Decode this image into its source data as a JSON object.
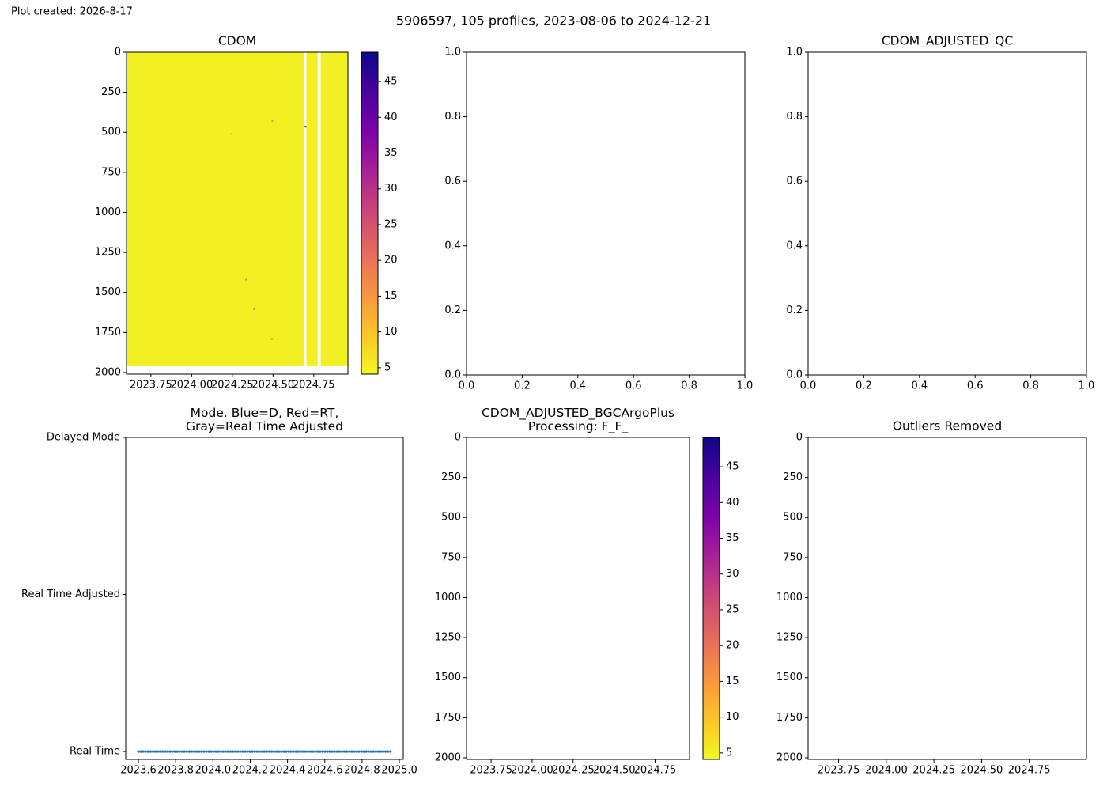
{
  "header": {
    "created": "Plot created: 2026-8-17",
    "title": "5906597, 105 profiles, 2023-08-06 to 2024-12-21"
  },
  "chart_data": [
    {
      "type": "heatmap",
      "title": "CDOM",
      "colormap": "plasma_r",
      "xlim": [
        2023.6,
        2024.96
      ],
      "ylim": [
        2010,
        0
      ],
      "xticks": [
        2023.75,
        {
          "value": 2024,
          "label": "2024.00"
        },
        2024.25,
        {
          "value": 2024.5,
          "label": "2024.50"
        },
        2024.75
      ],
      "yticks": [
        0,
        250,
        500,
        750,
        1000,
        1250,
        1500,
        1750,
        2000
      ],
      "colorbar": {
        "lim": [
          4.1,
          49.1
        ],
        "ticks": [
          5,
          10,
          15,
          20,
          25,
          30,
          35,
          40,
          45
        ]
      },
      "cells": [
        {
          "x": [
            2023.6,
            2024.69
          ],
          "y": [
            0,
            1960
          ],
          "value": 5
        },
        {
          "x": [
            2024.705,
            2024.774
          ],
          "y": [
            0,
            1960
          ],
          "value": 5
        },
        {
          "x": [
            2024.793,
            2024.96
          ],
          "y": [
            0,
            1960
          ],
          "value": 5
        },
        {
          "x": [
            2024.695,
            2024.705
          ],
          "y": [
            460,
            470
          ],
          "value": 48
        },
        {
          "x": [
            2024.485,
            2024.5
          ],
          "y": [
            1785,
            1795
          ],
          "value": 20
        },
        {
          "x": [
            2024.24,
            2024.25
          ],
          "y": [
            505,
            515
          ],
          "value": 14
        },
        {
          "x": [
            2024.49,
            2024.5
          ],
          "y": [
            425,
            435
          ],
          "value": 17
        },
        {
          "x": [
            2024.38,
            2024.39
          ],
          "y": [
            1600,
            1610
          ],
          "value": 20
        },
        {
          "x": [
            2024.33,
            2024.34
          ],
          "y": [
            1415,
            1425
          ],
          "value": 20
        }
      ]
    },
    {
      "type": "line",
      "xlim": [
        0,
        1
      ],
      "ylim": [
        0,
        1
      ],
      "xticks": [
        {
          "value": 0,
          "label": "0.0"
        },
        0.2,
        0.4,
        0.6,
        0.8,
        {
          "value": 1,
          "label": "1.0"
        }
      ],
      "yticks": [
        {
          "value": 0,
          "label": "0.0"
        },
        0.2,
        0.4,
        0.6,
        0.8,
        {
          "value": 1,
          "label": "1.0"
        }
      ],
      "series": []
    },
    {
      "type": "line",
      "title": "CDOM_ADJUSTED_QC",
      "xlim": [
        0,
        1
      ],
      "ylim": [
        0,
        1
      ],
      "xticks": [
        {
          "value": 0,
          "label": "0.0"
        },
        0.2,
        0.4,
        0.6,
        0.8,
        {
          "value": 1,
          "label": "1.0"
        }
      ],
      "yticks": [
        {
          "value": 0,
          "label": "0.0"
        },
        0.2,
        0.4,
        0.6,
        0.8,
        {
          "value": 1,
          "label": "1.0"
        }
      ],
      "series": []
    },
    {
      "type": "scatter",
      "title": "Mode. Blue=D, Red=RT,\nGray=Real Time Adjusted",
      "xlim": [
        2023.532,
        2025.021
      ],
      "ylim": [
        -0.05,
        2.0
      ],
      "xticks": [
        2023.6,
        2023.8,
        {
          "value": 2024,
          "label": "2024.0"
        },
        2024.2,
        2024.4,
        2024.6,
        2024.8,
        {
          "value": 2025,
          "label": "2025.0"
        }
      ],
      "yticks": [
        {
          "value": 0,
          "label": "Real Time"
        },
        {
          "value": 1,
          "label": "Real Time Adjusted"
        },
        {
          "value": 2,
          "label": "Delayed Mode"
        }
      ],
      "series": [
        {
          "color": "#1f77b4",
          "x": [
            2023.6,
            2023.613,
            2023.626,
            2023.639,
            2023.652,
            2023.665,
            2023.678,
            2023.691,
            2023.704,
            2023.717,
            2023.73,
            2023.743,
            2023.756,
            2023.769,
            2023.782,
            2023.795,
            2023.808,
            2023.821,
            2023.834,
            2023.847,
            2023.86,
            2023.873,
            2023.886,
            2023.899,
            2023.912,
            2023.925,
            2023.938,
            2023.951,
            2023.964,
            2023.977,
            2023.99,
            2024.003,
            2024.016,
            2024.029,
            2024.042,
            2024.055,
            2024.068,
            2024.081,
            2024.094,
            2024.107,
            2024.12,
            2024.133,
            2024.146,
            2024.159,
            2024.172,
            2024.185,
            2024.198,
            2024.211,
            2024.224,
            2024.237,
            2024.25,
            2024.263,
            2024.276,
            2024.289,
            2024.302,
            2024.315,
            2024.328,
            2024.341,
            2024.354,
            2024.367,
            2024.38,
            2024.393,
            2024.406,
            2024.419,
            2024.432,
            2024.445,
            2024.458,
            2024.471,
            2024.484,
            2024.497,
            2024.51,
            2024.523,
            2024.536,
            2024.549,
            2024.562,
            2024.575,
            2024.588,
            2024.601,
            2024.614,
            2024.627,
            2024.64,
            2024.653,
            2024.666,
            2024.679,
            2024.692,
            2024.705,
            2024.718,
            2024.731,
            2024.744,
            2024.757,
            2024.77,
            2024.783,
            2024.796,
            2024.809,
            2024.822,
            2024.835,
            2024.848,
            2024.861,
            2024.874,
            2024.887,
            2024.9,
            2024.913,
            2024.926,
            2024.939,
            2024.952
          ],
          "values": [
            0,
            0,
            0,
            0,
            0,
            0,
            0,
            0,
            0,
            0,
            0,
            0,
            0,
            0,
            0,
            0,
            0,
            0,
            0,
            0,
            0,
            0,
            0,
            0,
            0,
            0,
            0,
            0,
            0,
            0,
            0,
            0,
            0,
            0,
            0,
            0,
            0,
            0,
            0,
            0,
            0,
            0,
            0,
            0,
            0,
            0,
            0,
            0,
            0,
            0,
            0,
            0,
            0,
            0,
            0,
            0,
            0,
            0,
            0,
            0,
            0,
            0,
            0,
            0,
            0,
            0,
            0,
            0,
            0,
            0,
            0,
            0,
            0,
            0,
            0,
            0,
            0,
            0,
            0,
            0,
            0,
            0,
            0,
            0,
            0,
            0,
            0,
            0,
            0,
            0,
            0,
            0,
            0,
            0,
            0,
            0,
            0,
            0,
            0,
            0,
            0,
            0,
            0,
            0,
            0
          ]
        }
      ]
    },
    {
      "type": "heatmap",
      "title": "CDOM_ADJUSTED_BGCArgoPlus\nProcessing: F_F_",
      "colormap": "plasma_r",
      "xlim": [
        2023.6,
        2024.96
      ],
      "ylim": [
        2010,
        0
      ],
      "xticks": [
        2023.75,
        {
          "value": 2024,
          "label": "2024.00"
        },
        2024.25,
        {
          "value": 2024.5,
          "label": "2024.50"
        },
        2024.75
      ],
      "yticks": [
        0,
        250,
        500,
        750,
        1000,
        1250,
        1500,
        1750,
        2000
      ],
      "colorbar": {
        "lim": [
          4.1,
          49.1
        ],
        "ticks": [
          5,
          10,
          15,
          20,
          25,
          30,
          35,
          40,
          45
        ]
      },
      "cells": []
    },
    {
      "type": "scatter",
      "title": "Outliers Removed",
      "xlim": [
        2023.59,
        2025.05
      ],
      "ylim": [
        2010,
        0
      ],
      "xticks": [
        2023.75,
        {
          "value": 2024,
          "label": "2024.00"
        },
        2024.25,
        {
          "value": 2024.5,
          "label": "2024.50"
        },
        2024.75
      ],
      "yticks": [
        0,
        250,
        500,
        750,
        1000,
        1250,
        1500,
        1750,
        2000
      ],
      "series": []
    }
  ]
}
